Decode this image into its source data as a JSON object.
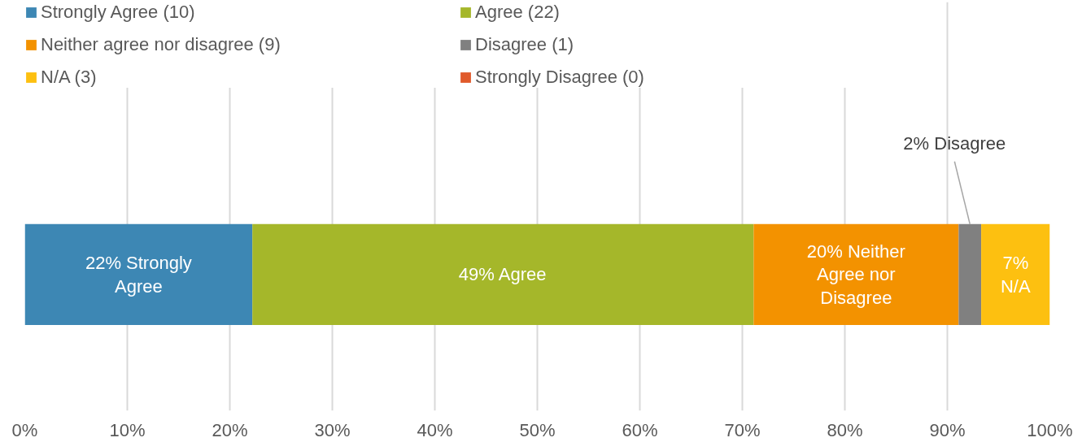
{
  "chart_data": {
    "type": "bar",
    "orientation": "horizontal",
    "stacked": true,
    "categories": [
      null
    ],
    "xlim": [
      0,
      100
    ],
    "xticks": [
      {
        "value": 0,
        "label": "0%"
      },
      {
        "value": 10,
        "label": "10%"
      },
      {
        "value": 20,
        "label": "20%"
      },
      {
        "value": 30,
        "label": "30%"
      },
      {
        "value": 40,
        "label": "40%"
      },
      {
        "value": 50,
        "label": "50%"
      },
      {
        "value": 60,
        "label": "60%"
      },
      {
        "value": 70,
        "label": "70%"
      },
      {
        "value": 80,
        "label": "80%"
      },
      {
        "value": 90,
        "label": "90%"
      },
      {
        "value": 100,
        "label": "100%"
      }
    ],
    "grid": "x",
    "legend": "top",
    "tick_labels": "x",
    "series": [
      {
        "name": "Strongly Agree (10)",
        "color": "#3d87b4",
        "values": [
          22.2
        ],
        "value_labels": [
          "22% Strongly\nAgree"
        ]
      },
      {
        "name": "Agree (22)",
        "color": "#a5b72a",
        "values": [
          48.9
        ],
        "value_labels": [
          "49% Agree"
        ]
      },
      {
        "name": "Neither agree nor disagree (9)",
        "color": "#f39200",
        "values": [
          20
        ],
        "value_labels": [
          "20% Neither\nAgree nor\nDisagree"
        ]
      },
      {
        "name": "Disagree (1)",
        "color": "#808080",
        "values": [
          2.2
        ],
        "value_labels": [
          "2% Disagree"
        ]
      },
      {
        "name": "N/A (3)",
        "color": "#fdc010",
        "values": [
          6.7
        ],
        "value_labels": [
          "7%\nN/A"
        ]
      },
      {
        "name": "Strongly Disagree (0)",
        "color": "#e05a2b",
        "values": [
          0
        ],
        "value_labels": [
          null
        ]
      }
    ]
  }
}
